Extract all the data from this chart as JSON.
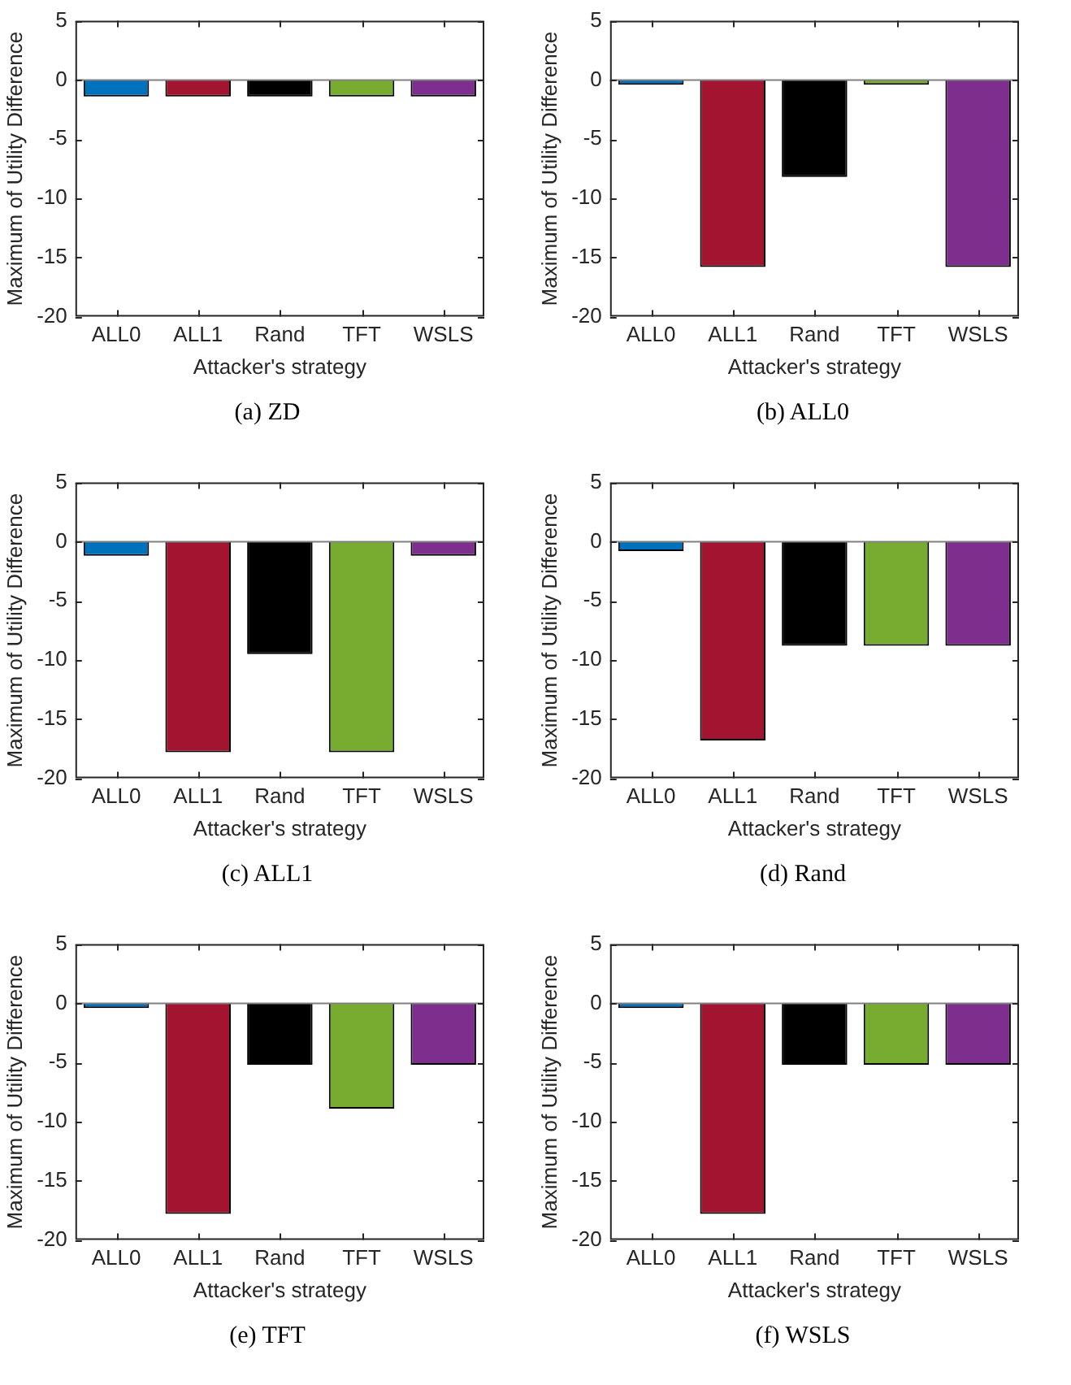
{
  "chart_data": [
    {
      "type": "bar",
      "title": "(a)  ZD",
      "xlabel": "Attacker's strategy",
      "ylabel": "Maximum of Utility Difference",
      "categories": [
        "ALL0",
        "ALL1",
        "Rand",
        "TFT",
        "WSLS"
      ],
      "values": [
        -1.4,
        -1.4,
        -1.4,
        -1.4,
        -1.4
      ],
      "colors": [
        "#0072bd",
        "#a2142f",
        "#000000",
        "#77ac30",
        "#7e2f8e"
      ],
      "ylim": [
        -20,
        5
      ],
      "yticks": [
        -20,
        -15,
        -10,
        -5,
        0,
        5
      ],
      "grid": false,
      "legend": false,
      "ref_lines": [
        {
          "axis": "y",
          "value": 0,
          "color": "#808080"
        }
      ]
    },
    {
      "type": "bar",
      "title": "(b)  ALL0",
      "xlabel": "Attacker's strategy",
      "ylabel": "Maximum of Utility Difference",
      "categories": [
        "ALL0",
        "ALL1",
        "Rand",
        "TFT",
        "WSLS"
      ],
      "values": [
        -0.4,
        -15.8,
        -8.2,
        -0.4,
        -15.8
      ],
      "colors": [
        "#0072bd",
        "#a2142f",
        "#000000",
        "#77ac30",
        "#7e2f8e"
      ],
      "ylim": [
        -20,
        5
      ],
      "yticks": [
        -20,
        -15,
        -10,
        -5,
        0,
        5
      ],
      "grid": false,
      "legend": false,
      "ref_lines": [
        {
          "axis": "y",
          "value": 0,
          "color": "#808080"
        }
      ]
    },
    {
      "type": "bar",
      "title": "(c)  ALL1",
      "xlabel": "Attacker's strategy",
      "ylabel": "Maximum of Utility Difference",
      "categories": [
        "ALL0",
        "ALL1",
        "Rand",
        "TFT",
        "WSLS"
      ],
      "values": [
        -1.2,
        -17.8,
        -9.5,
        -17.8,
        -1.2
      ],
      "colors": [
        "#0072bd",
        "#a2142f",
        "#000000",
        "#77ac30",
        "#7e2f8e"
      ],
      "ylim": [
        -20,
        5
      ],
      "yticks": [
        -20,
        -15,
        -10,
        -5,
        0,
        5
      ],
      "grid": false,
      "legend": false,
      "ref_lines": [
        {
          "axis": "y",
          "value": 0,
          "color": "#808080"
        }
      ]
    },
    {
      "type": "bar",
      "title": "(d)  Rand",
      "xlabel": "Attacker's strategy",
      "ylabel": "Maximum of Utility Difference",
      "categories": [
        "ALL0",
        "ALL1",
        "Rand",
        "TFT",
        "WSLS"
      ],
      "values": [
        -0.8,
        -16.8,
        -8.8,
        -8.8,
        -8.8
      ],
      "colors": [
        "#0072bd",
        "#a2142f",
        "#000000",
        "#77ac30",
        "#7e2f8e"
      ],
      "ylim": [
        -20,
        5
      ],
      "yticks": [
        -20,
        -15,
        -10,
        -5,
        0,
        5
      ],
      "grid": false,
      "legend": false,
      "ref_lines": [
        {
          "axis": "y",
          "value": 0,
          "color": "#808080"
        }
      ]
    },
    {
      "type": "bar",
      "title": "(e)  TFT",
      "xlabel": "Attacker's strategy",
      "ylabel": "Maximum of Utility Difference",
      "categories": [
        "ALL0",
        "ALL1",
        "Rand",
        "TFT",
        "WSLS"
      ],
      "values": [
        -0.4,
        -17.8,
        -5.2,
        -8.9,
        -5.2
      ],
      "colors": [
        "#0072bd",
        "#a2142f",
        "#000000",
        "#77ac30",
        "#7e2f8e"
      ],
      "ylim": [
        -20,
        5
      ],
      "yticks": [
        -20,
        -15,
        -10,
        -5,
        0,
        5
      ],
      "grid": false,
      "legend": false,
      "ref_lines": [
        {
          "axis": "y",
          "value": 0,
          "color": "#808080"
        }
      ]
    },
    {
      "type": "bar",
      "title": "(f)  WSLS",
      "xlabel": "Attacker's strategy",
      "ylabel": "Maximum of Utility Difference",
      "categories": [
        "ALL0",
        "ALL1",
        "Rand",
        "TFT",
        "WSLS"
      ],
      "values": [
        -0.4,
        -17.8,
        -5.2,
        -5.2,
        -5.2
      ],
      "colors": [
        "#0072bd",
        "#a2142f",
        "#000000",
        "#77ac30",
        "#7e2f8e"
      ],
      "ylim": [
        -20,
        5
      ],
      "yticks": [
        -20,
        -15,
        -10,
        -5,
        0,
        5
      ],
      "grid": false,
      "legend": false,
      "ref_lines": [
        {
          "axis": "y",
          "value": 0,
          "color": "#808080"
        }
      ]
    }
  ]
}
